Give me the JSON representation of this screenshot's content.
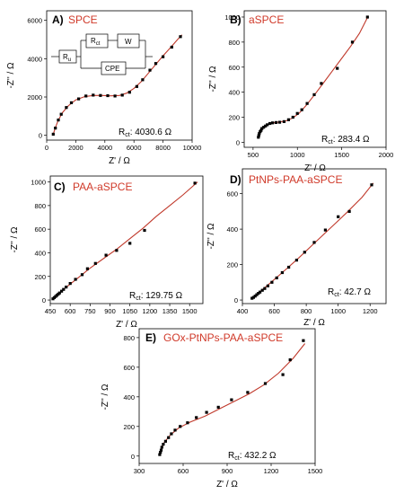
{
  "colors": {
    "fit": "#c0392b",
    "points": "#000000",
    "name": "#d03a2a"
  },
  "common": {
    "xlabel": "Z' / Ω",
    "ylabel": "-Z'' / Ω",
    "rct_main": "R",
    "rct_sub": "ct",
    "rct_colon": ":"
  },
  "circuit": {
    "ru": "R",
    "ru_sub": "u",
    "rct": "R",
    "rct_sub": "ct",
    "w": "W",
    "cpe": "CPE"
  },
  "chart_data": [
    {
      "type": "scatter",
      "letter": "A)",
      "title": "SPCE",
      "rct_value": "4030.6 Ω",
      "xlim": [
        0,
        10000
      ],
      "ylim": [
        -250,
        6500
      ],
      "xticks": [
        0,
        2000,
        4000,
        6000,
        8000,
        10000
      ],
      "yticks": [
        0,
        2000,
        4000,
        6000
      ],
      "points": [
        [
          450,
          60
        ],
        [
          600,
          380
        ],
        [
          800,
          800
        ],
        [
          1000,
          1100
        ],
        [
          1350,
          1450
        ],
        [
          1700,
          1700
        ],
        [
          2200,
          1900
        ],
        [
          2700,
          2050
        ],
        [
          3200,
          2100
        ],
        [
          3700,
          2080
        ],
        [
          4200,
          2070
        ],
        [
          4700,
          2050
        ],
        [
          5200,
          2100
        ],
        [
          5700,
          2250
        ],
        [
          6200,
          2550
        ],
        [
          6600,
          2900
        ],
        [
          7100,
          3400
        ],
        [
          7500,
          3750
        ],
        [
          8000,
          4100
        ],
        [
          8600,
          4600
        ],
        [
          9200,
          5150
        ]
      ],
      "fit": [
        [
          450,
          60
        ],
        [
          600,
          400
        ],
        [
          800,
          800
        ],
        [
          1100,
          1200
        ],
        [
          1500,
          1550
        ],
        [
          2000,
          1850
        ],
        [
          2600,
          2020
        ],
        [
          3200,
          2080
        ],
        [
          3800,
          2080
        ],
        [
          4400,
          2060
        ],
        [
          5000,
          2080
        ],
        [
          5500,
          2200
        ],
        [
          6000,
          2450
        ],
        [
          6500,
          2800
        ],
        [
          7000,
          3250
        ],
        [
          7500,
          3700
        ],
        [
          8000,
          4150
        ],
        [
          8500,
          4570
        ],
        [
          9000,
          5000
        ],
        [
          9300,
          5250
        ]
      ]
    },
    {
      "type": "scatter",
      "letter": "B)",
      "title": "aSPCE",
      "rct_value": "283.4 Ω",
      "xlim": [
        400,
        2000
      ],
      "ylim": [
        -40,
        1050
      ],
      "xticks": [
        500,
        1000,
        1500,
        2000
      ],
      "yticks": [
        0,
        200,
        400,
        600,
        800,
        1000
      ],
      "points": [
        [
          560,
          40
        ],
        [
          565,
          55
        ],
        [
          570,
          70
        ],
        [
          580,
          85
        ],
        [
          590,
          95
        ],
        [
          600,
          110
        ],
        [
          620,
          120
        ],
        [
          640,
          130
        ],
        [
          660,
          140
        ],
        [
          690,
          150
        ],
        [
          720,
          155
        ],
        [
          760,
          158
        ],
        [
          800,
          160
        ],
        [
          850,
          165
        ],
        [
          900,
          180
        ],
        [
          950,
          200
        ],
        [
          1000,
          230
        ],
        [
          1050,
          260
        ],
        [
          1110,
          310
        ],
        [
          1190,
          380
        ],
        [
          1270,
          470
        ],
        [
          1450,
          590
        ],
        [
          1620,
          800
        ],
        [
          1790,
          1000
        ]
      ],
      "fit": [
        [
          555,
          30
        ],
        [
          575,
          75
        ],
        [
          610,
          110
        ],
        [
          660,
          138
        ],
        [
          720,
          155
        ],
        [
          800,
          162
        ],
        [
          880,
          172
        ],
        [
          950,
          195
        ],
        [
          1020,
          232
        ],
        [
          1100,
          295
        ],
        [
          1200,
          385
        ],
        [
          1300,
          480
        ],
        [
          1400,
          575
        ],
        [
          1500,
          670
        ],
        [
          1600,
          765
        ],
        [
          1700,
          870
        ],
        [
          1800,
          1010
        ]
      ]
    },
    {
      "type": "scatter",
      "letter": "C)",
      "title": "PAA-aSPCE",
      "rct_value": "129.75 Ω",
      "xlim": [
        450,
        1600
      ],
      "ylim": [
        -30,
        1050
      ],
      "xticks": [
        450,
        600,
        750,
        900,
        1050,
        1200,
        1350,
        1500
      ],
      "yticks": [
        0,
        200,
        400,
        600,
        800,
        1000
      ],
      "points": [
        [
          470,
          10
        ],
        [
          480,
          20
        ],
        [
          490,
          30
        ],
        [
          500,
          40
        ],
        [
          510,
          50
        ],
        [
          520,
          60
        ],
        [
          535,
          75
        ],
        [
          550,
          90
        ],
        [
          570,
          110
        ],
        [
          600,
          140
        ],
        [
          640,
          175
        ],
        [
          690,
          215
        ],
        [
          730,
          265
        ],
        [
          790,
          310
        ],
        [
          870,
          380
        ],
        [
          950,
          420
        ],
        [
          1050,
          480
        ],
        [
          1160,
          590
        ],
        [
          1540,
          990
        ]
      ],
      "fit": [
        [
          465,
          5
        ],
        [
          500,
          40
        ],
        [
          560,
          100
        ],
        [
          650,
          180
        ],
        [
          750,
          270
        ],
        [
          850,
          350
        ],
        [
          950,
          430
        ],
        [
          1050,
          520
        ],
        [
          1150,
          610
        ],
        [
          1250,
          710
        ],
        [
          1350,
          800
        ],
        [
          1450,
          890
        ],
        [
          1560,
          1000
        ]
      ]
    },
    {
      "type": "scatter",
      "letter": "D)",
      "title": "PtNPs-PAA-aSPCE",
      "rct_value": "42.7 Ω",
      "xlim": [
        400,
        1300
      ],
      "ylim": [
        -20,
        740
      ],
      "xticks": [
        400,
        600,
        800,
        1000,
        1200
      ],
      "yticks": [
        0,
        200,
        400,
        600
      ],
      "points": [
        [
          460,
          10
        ],
        [
          470,
          15
        ],
        [
          480,
          22
        ],
        [
          490,
          30
        ],
        [
          500,
          38
        ],
        [
          510,
          45
        ],
        [
          525,
          55
        ],
        [
          540,
          65
        ],
        [
          560,
          80
        ],
        [
          585,
          100
        ],
        [
          615,
          125
        ],
        [
          650,
          155
        ],
        [
          690,
          185
        ],
        [
          740,
          225
        ],
        [
          790,
          270
        ],
        [
          850,
          325
        ],
        [
          920,
          395
        ],
        [
          1000,
          470
        ],
        [
          1070,
          500
        ],
        [
          1210,
          650
        ]
      ],
      "fit": [
        [
          455,
          5
        ],
        [
          500,
          40
        ],
        [
          560,
          85
        ],
        [
          650,
          155
        ],
        [
          750,
          235
        ],
        [
          850,
          320
        ],
        [
          950,
          405
        ],
        [
          1050,
          490
        ],
        [
          1150,
          580
        ],
        [
          1220,
          660
        ]
      ]
    },
    {
      "type": "scatter",
      "letter": "E)",
      "title": "GOx-PtNPs-PAA-aSPCE",
      "rct_value": "432.2 Ω",
      "xlim": [
        300,
        1500
      ],
      "ylim": [
        -50,
        860
      ],
      "xticks": [
        300,
        600,
        900,
        1200,
        1500
      ],
      "yticks": [
        0,
        200,
        400,
        600,
        800
      ],
      "points": [
        [
          440,
          10
        ],
        [
          445,
          25
        ],
        [
          450,
          40
        ],
        [
          455,
          60
        ],
        [
          465,
          80
        ],
        [
          480,
          100
        ],
        [
          500,
          125
        ],
        [
          520,
          150
        ],
        [
          545,
          175
        ],
        [
          580,
          200
        ],
        [
          630,
          225
        ],
        [
          690,
          260
        ],
        [
          760,
          295
        ],
        [
          840,
          330
        ],
        [
          930,
          380
        ],
        [
          1040,
          430
        ],
        [
          1160,
          490
        ],
        [
          1280,
          550
        ],
        [
          1330,
          650
        ],
        [
          1420,
          780
        ]
      ],
      "fit": [
        [
          440,
          5
        ],
        [
          450,
          40
        ],
        [
          470,
          90
        ],
        [
          510,
          140
        ],
        [
          570,
          190
        ],
        [
          650,
          230
        ],
        [
          750,
          270
        ],
        [
          850,
          320
        ],
        [
          950,
          370
        ],
        [
          1050,
          420
        ],
        [
          1150,
          480
        ],
        [
          1250,
          560
        ],
        [
          1350,
          660
        ],
        [
          1430,
          760
        ]
      ]
    }
  ]
}
